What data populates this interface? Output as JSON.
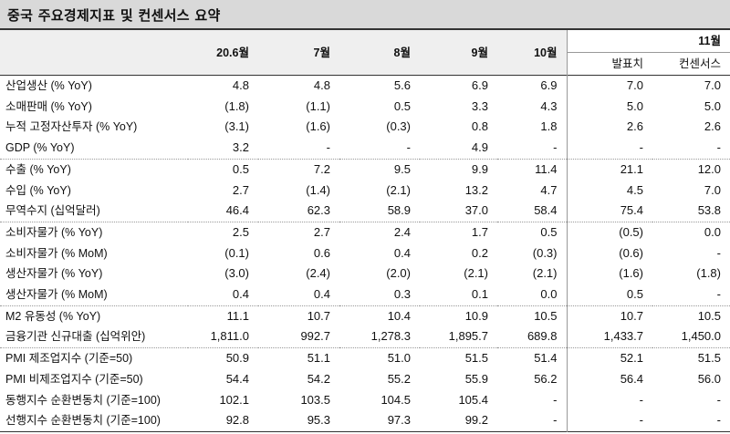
{
  "title": "중국 주요경제지표 및 컨센서스 요약",
  "header": {
    "periods": [
      "20.6월",
      "7월",
      "8월",
      "9월",
      "10월"
    ],
    "nov": "11월",
    "actual": "발표치",
    "consensus": "컨센서스"
  },
  "rows": [
    {
      "label": "산업생산 (% YoY)",
      "values": [
        "4.8",
        "4.8",
        "5.6",
        "6.9",
        "6.9",
        "7.0",
        "7.0"
      ]
    },
    {
      "label": "소매판매 (% YoY)",
      "values": [
        "(1.8)",
        "(1.1)",
        "0.5",
        "3.3",
        "4.3",
        "5.0",
        "5.0"
      ]
    },
    {
      "label": "누적 고정자산투자 (% YoY)",
      "values": [
        "(3.1)",
        "(1.6)",
        "(0.3)",
        "0.8",
        "1.8",
        "2.6",
        "2.6"
      ]
    },
    {
      "label": "GDP (% YoY)",
      "values": [
        "3.2",
        "-",
        "-",
        "4.9",
        "-",
        "-",
        "-"
      ]
    },
    {
      "label": "수출 (% YoY)",
      "values": [
        "0.5",
        "7.2",
        "9.5",
        "9.9",
        "11.4",
        "21.1",
        "12.0"
      ]
    },
    {
      "label": "수입 (% YoY)",
      "values": [
        "2.7",
        "(1.4)",
        "(2.1)",
        "13.2",
        "4.7",
        "4.5",
        "7.0"
      ]
    },
    {
      "label": "무역수지 (십억달러)",
      "values": [
        "46.4",
        "62.3",
        "58.9",
        "37.0",
        "58.4",
        "75.4",
        "53.8"
      ]
    },
    {
      "label": "소비자물가 (% YoY)",
      "values": [
        "2.5",
        "2.7",
        "2.4",
        "1.7",
        "0.5",
        "(0.5)",
        "0.0"
      ]
    },
    {
      "label": "소비자물가 (% MoM)",
      "values": [
        "(0.1)",
        "0.6",
        "0.4",
        "0.2",
        "(0.3)",
        "(0.6)",
        "-"
      ]
    },
    {
      "label": "생산자물가 (% YoY)",
      "values": [
        "(3.0)",
        "(2.4)",
        "(2.0)",
        "(2.1)",
        "(2.1)",
        "(1.6)",
        "(1.8)"
      ]
    },
    {
      "label": "생산자물가 (% MoM)",
      "values": [
        "0.4",
        "0.4",
        "0.3",
        "0.1",
        "0.0",
        "0.5",
        "-"
      ]
    },
    {
      "label": "M2 유동성 (% YoY)",
      "values": [
        "11.1",
        "10.7",
        "10.4",
        "10.9",
        "10.5",
        "10.7",
        "10.5"
      ]
    },
    {
      "label": "금융기관 신규대출 (십억위안)",
      "values": [
        "1,811.0",
        "992.7",
        "1,278.3",
        "1,895.7",
        "689.8",
        "1,433.7",
        "1,450.0"
      ]
    },
    {
      "label": "PMI 제조업지수 (기준=50)",
      "values": [
        "50.9",
        "51.1",
        "51.0",
        "51.5",
        "51.4",
        "52.1",
        "51.5"
      ]
    },
    {
      "label": "PMI 비제조업지수 (기준=50)",
      "values": [
        "54.4",
        "54.2",
        "55.2",
        "55.9",
        "56.2",
        "56.4",
        "56.0"
      ]
    },
    {
      "label": "동행지수 순환변동치 (기준=100)",
      "values": [
        "102.1",
        "103.5",
        "104.5",
        "105.4",
        "-",
        "-",
        "-"
      ]
    },
    {
      "label": "선행지수 순환변동치 (기준=100)",
      "values": [
        "92.8",
        "95.3",
        "97.3",
        "99.2",
        "-",
        "-",
        "-"
      ]
    }
  ]
}
